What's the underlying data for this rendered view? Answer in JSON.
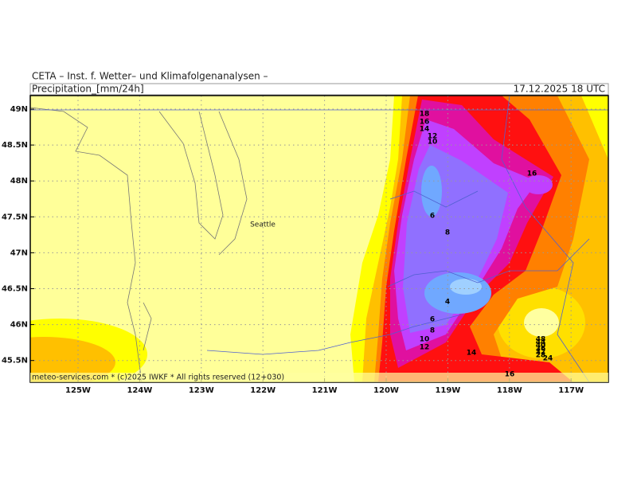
{
  "header": {
    "institute": "CETA – Inst. f. Wetter– und Klimafolgenanalysen –",
    "parameter": "Precipitation_[mm/24h]",
    "valid_time": "17.12.2025 18 UTC"
  },
  "map": {
    "place_labels": [
      "Seattle"
    ],
    "latitude_labels": [
      "49N",
      "48.5N",
      "48N",
      "47.5N",
      "47N",
      "46.5N",
      "46N",
      "45.5N"
    ],
    "longitude_labels": [
      "125W",
      "124W",
      "123W",
      "122W",
      "121W",
      "120W",
      "119W",
      "118W",
      "117W"
    ],
    "contour_labels": [
      "18",
      "16",
      "14",
      "12",
      "10",
      "16",
      "6",
      "8",
      "4",
      "6",
      "8",
      "10",
      "12",
      "14",
      "16",
      "48",
      "44",
      "40",
      "36",
      "32",
      "28",
      "24"
    ]
  },
  "footer": "meteo-services.com * (c)2025 IWKF * All rights reserved (12+030)"
}
